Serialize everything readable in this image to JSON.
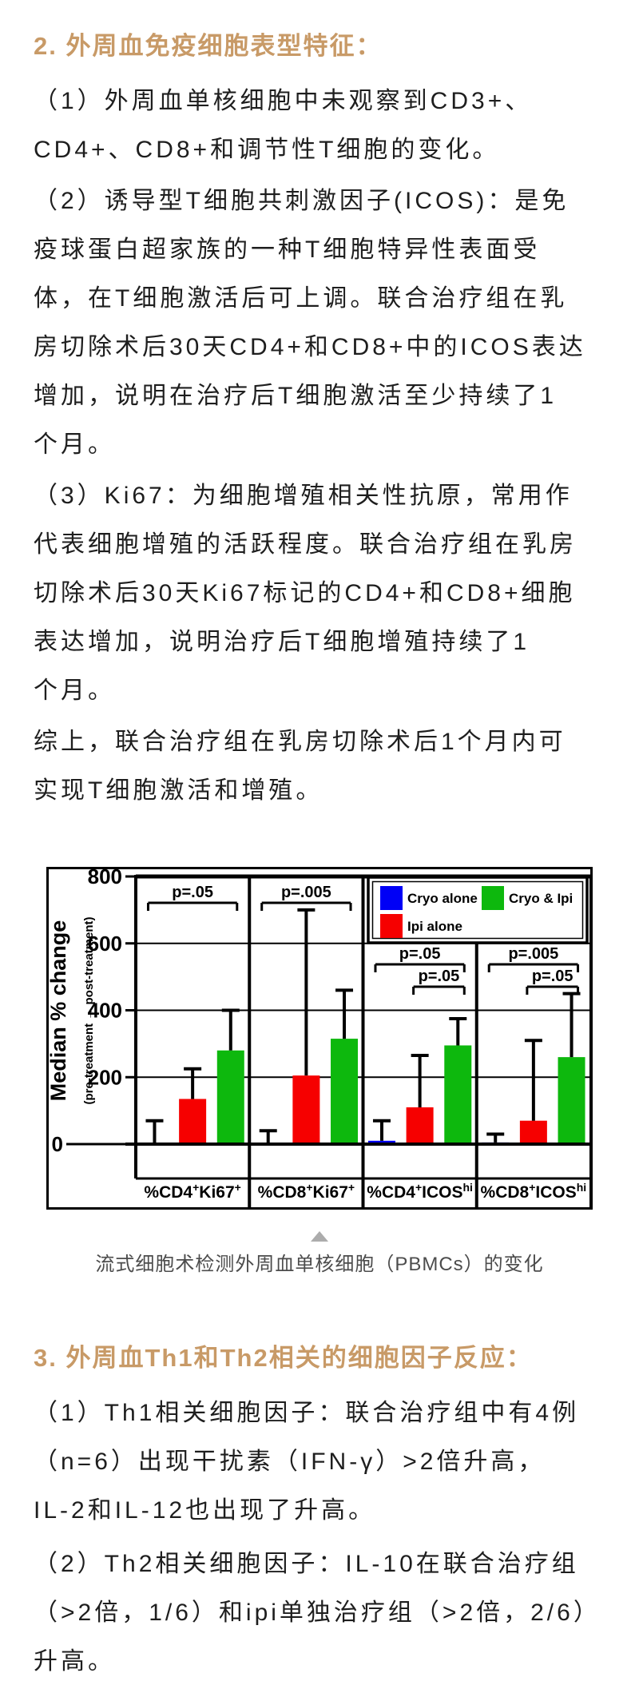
{
  "section2": {
    "heading": "2. 外周血免疫细胞表型特征：",
    "paragraphs": [
      [
        "（1）外周血单核细胞中未观察到CD3+、",
        "CD4+、CD8+和调节性T细胞的变化。"
      ],
      [
        "（2）诱导型T细胞共刺激因子(ICOS)：是免",
        "疫球蛋白超家族的一种T细胞特异性表面受",
        "体，在T细胞激活后可上调。联合治疗组在乳",
        "房切除术后30天CD4+和CD8+中的ICOS表达",
        "增加，说明在治疗后T细胞激活至少持续了1",
        "个月。"
      ],
      [
        "（3）Ki67：为细胞增殖相关性抗原，常用作",
        "代表细胞增殖的活跃程度。联合治疗组在乳房",
        "切除术后30天Ki67标记的CD4+和CD8+细胞",
        "表达增加，说明治疗后T细胞增殖持续了1",
        "个月。"
      ],
      [
        "综上，联合治疗组在乳房切除术后1个月内可",
        "实现T细胞激活和增殖。"
      ]
    ]
  },
  "figure": {
    "caption": "流式细胞术检测外周血单核细胞（PBMCs）的变化"
  },
  "chart_data": {
    "type": "bar",
    "title": "",
    "ylabel": "Median % change",
    "ylabel_sub": "(pre-treatment → post-treatment)",
    "ylim": [
      0,
      800
    ],
    "yticks": [
      0,
      200,
      400,
      600,
      800
    ],
    "grid": true,
    "legend_position": "top-right",
    "categories": [
      {
        "label": "%CD4+Ki67+",
        "segments": [
          {
            "t": "%CD4"
          },
          {
            "t": "+",
            "sup": true
          },
          {
            "t": "Ki67"
          },
          {
            "t": "+",
            "sup": true
          }
        ]
      },
      {
        "label": "%CD8+Ki67+",
        "segments": [
          {
            "t": "%CD8"
          },
          {
            "t": "+",
            "sup": true
          },
          {
            "t": "Ki67"
          },
          {
            "t": "+",
            "sup": true
          }
        ]
      },
      {
        "label": "%CD4+ICOShi",
        "segments": [
          {
            "t": "%CD4"
          },
          {
            "t": "+",
            "sup": true
          },
          {
            "t": "ICOS"
          },
          {
            "t": "hi",
            "sup": true
          }
        ]
      },
      {
        "label": "%CD8+ICOShi",
        "segments": [
          {
            "t": "%CD8"
          },
          {
            "t": "+",
            "sup": true
          },
          {
            "t": "ICOS"
          },
          {
            "t": "hi",
            "sup": true
          }
        ]
      }
    ],
    "series": [
      {
        "name": "Cryo alone",
        "color": "#0000f6",
        "values": [
          0,
          0,
          10,
          5
        ],
        "err_hi": [
          70,
          40,
          70,
          30
        ]
      },
      {
        "name": "Ipi alone",
        "color": "#f60000",
        "values": [
          135,
          205,
          110,
          70
        ],
        "err_hi": [
          225,
          700,
          265,
          310
        ]
      },
      {
        "name": "Cryo & Ipi",
        "color": "#0db80d",
        "values": [
          280,
          315,
          295,
          260
        ],
        "err_hi": [
          400,
          460,
          375,
          450
        ]
      }
    ],
    "legend_rows": [
      [
        0,
        2
      ],
      [
        1
      ]
    ],
    "significance": [
      {
        "panel": 0,
        "label": "p=.05",
        "from": 0,
        "to": 2,
        "tier": 1
      },
      {
        "panel": 1,
        "label": "p=.005",
        "from": 0,
        "to": 2,
        "tier": 1
      },
      {
        "panel": 2,
        "label": "p=.05",
        "from": 0,
        "to": 2,
        "tier": 2
      },
      {
        "panel": 2,
        "label": "p=.05",
        "from": 1,
        "to": 2,
        "tier": 3
      },
      {
        "panel": 3,
        "label": "p=.005",
        "from": 0,
        "to": 2,
        "tier": 2
      },
      {
        "panel": 3,
        "label": "p=.05",
        "from": 1,
        "to": 2,
        "tier": 3
      }
    ]
  },
  "section3": {
    "heading": "3. 外周血Th1和Th2相关的细胞因子反应：",
    "paragraphs": [
      [
        "（1）Th1相关细胞因子：联合治疗组中有4例",
        "（n=6）出现干扰素（IFN-γ）>2倍升高，",
        "IL-2和IL-12也出现了升高。"
      ],
      [
        "（2）Th2相关细胞因子：IL-10在联合治疗组",
        "（>2倍，1/6）和ipi单独治疗组（>2倍，2/6）",
        "升高。"
      ]
    ]
  }
}
